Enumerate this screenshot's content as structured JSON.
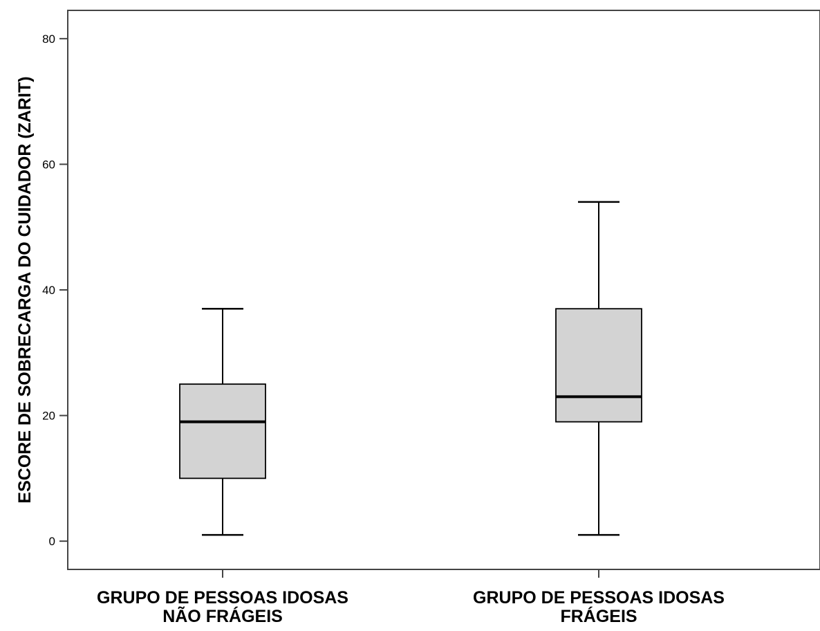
{
  "chart_data": {
    "type": "boxplot",
    "title": "",
    "xlabel": "",
    "ylabel": "ESCORE DE SOBRECARGA DO CUIDADOR (ZARIT)",
    "ylim": [
      -4.5,
      84.5
    ],
    "yticks": [
      0,
      20,
      40,
      60,
      80
    ],
    "grid": false,
    "categories": [
      [
        "GRUPO DE PESSOAS IDOSAS",
        "NÃO FRÁGEIS"
      ],
      [
        "GRUPO DE PESSOAS IDOSAS",
        "FRÁGEIS"
      ]
    ],
    "boxes": [
      {
        "whisker_low": 1,
        "q1": 10,
        "median": 19,
        "q3": 25,
        "whisker_high": 37
      },
      {
        "whisker_low": 1,
        "q1": 19,
        "median": 23,
        "q3": 37,
        "whisker_high": 54
      }
    ],
    "colors": {
      "box_fill": "#d3d3d3",
      "stroke": "#000000",
      "frame": "#444444",
      "text": "#000000"
    }
  }
}
